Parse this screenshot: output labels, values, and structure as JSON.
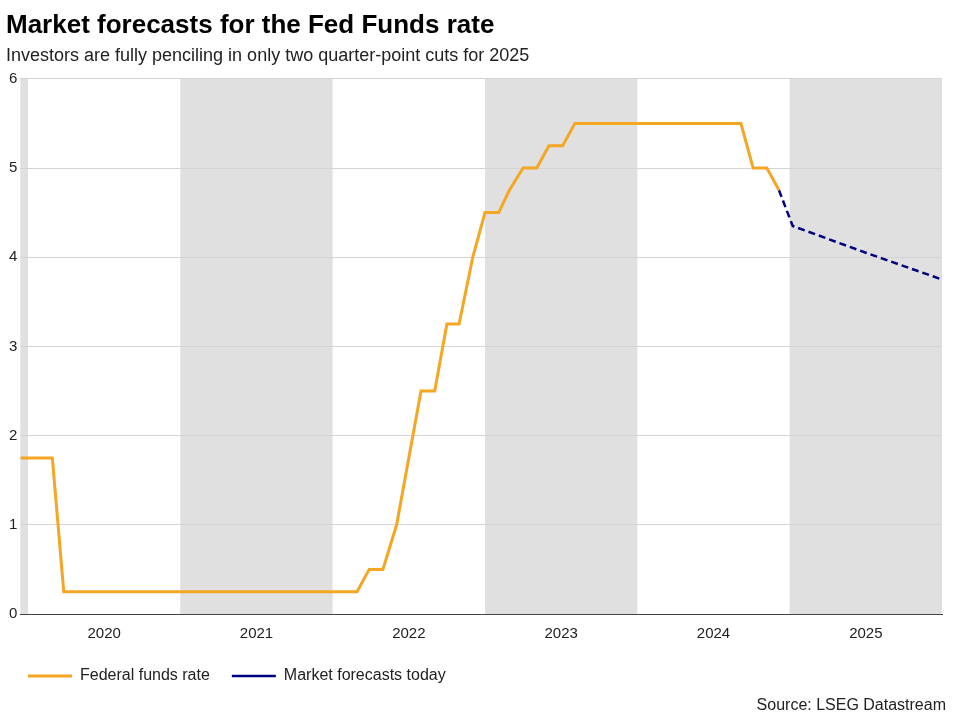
{
  "chart_data": {
    "type": "line",
    "title": "Market forecasts for the Fed Funds rate",
    "subtitle": "Investors are fully penciling in only two quarter-point cuts for 2025",
    "source": "Source: LSEG Datastream",
    "x": [
      2019.95,
      2020.16,
      2020.235,
      2022.16,
      2022.24,
      2022.33,
      2022.42,
      2022.58,
      2022.67,
      2022.75,
      2022.83,
      2022.92,
      2023.0,
      2023.09,
      2023.16,
      2023.25,
      2023.34,
      2023.42,
      2023.51,
      2023.59,
      2024.68,
      2024.76,
      2024.85,
      2024.93,
      2025.02,
      2025.5,
      2026.0
    ],
    "series": [
      {
        "name": "Federal funds rate",
        "color": "#f5a623",
        "line_style": "solid",
        "values": [
          1.75,
          1.75,
          0.25,
          0.25,
          0.5,
          0.5,
          1.0,
          2.5,
          2.5,
          3.25,
          3.25,
          4.0,
          4.5,
          4.5,
          4.75,
          5.0,
          5.0,
          5.25,
          5.25,
          5.5,
          5.5,
          5.0,
          5.0,
          4.75,
          null,
          null,
          null
        ]
      },
      {
        "name": "Market forecasts today",
        "color": "#000080",
        "line_style": "dashed",
        "values": [
          null,
          null,
          null,
          null,
          null,
          null,
          null,
          null,
          null,
          null,
          null,
          null,
          null,
          null,
          null,
          null,
          null,
          null,
          null,
          null,
          null,
          null,
          null,
          4.75,
          4.35,
          4.05,
          3.75
        ]
      }
    ],
    "xlim": [
      2019.95,
      2026.0
    ],
    "xticks": [
      {
        "value": 2020.5,
        "label": "2020"
      },
      {
        "value": 2021.5,
        "label": "2021"
      },
      {
        "value": 2022.5,
        "label": "2022"
      },
      {
        "value": 2023.5,
        "label": "2023"
      },
      {
        "value": 2024.5,
        "label": "2024"
      },
      {
        "value": 2025.5,
        "label": "2025"
      }
    ],
    "ylim": [
      0,
      6
    ],
    "yticks": [
      0,
      1,
      2,
      3,
      4,
      5,
      6
    ],
    "grid": true,
    "legend": "bottom-left"
  }
}
